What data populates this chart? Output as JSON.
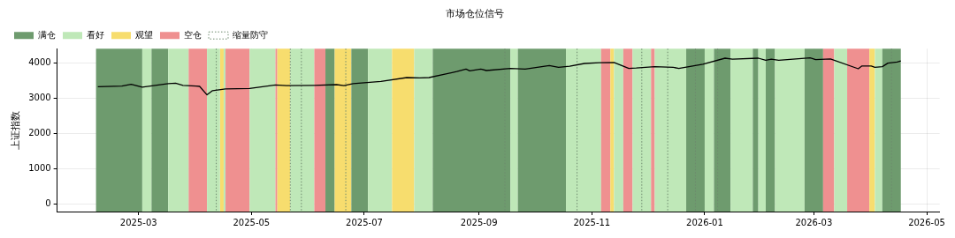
{
  "chart_data": {
    "type": "line",
    "title": "市场仓位信号",
    "ylabel": "上证指数",
    "x": [
      "2025-02-07",
      "2025-02-20",
      "2025-02-25",
      "2025-03-03",
      "2025-03-10",
      "2025-03-17",
      "2025-03-21",
      "2025-03-25",
      "2025-04-01",
      "2025-04-03",
      "2025-04-07",
      "2025-04-10",
      "2025-04-17",
      "2025-04-30",
      "2025-05-14",
      "2025-05-20",
      "2025-06-04",
      "2025-06-16",
      "2025-06-20",
      "2025-06-25",
      "2025-07-10",
      "2025-07-24",
      "2025-07-31",
      "2025-08-05",
      "2025-08-13",
      "2025-08-20",
      "2025-08-25",
      "2025-08-27",
      "2025-09-02",
      "2025-09-05",
      "2025-09-18",
      "2025-09-26",
      "2025-10-09",
      "2025-10-14",
      "2025-10-20",
      "2025-10-28",
      "2025-11-05",
      "2025-11-13",
      "2025-11-21",
      "2025-11-25",
      "2025-12-05",
      "2025-12-15",
      "2025-12-18",
      "2025-12-31",
      "2026-01-12",
      "2026-01-16",
      "2026-01-30",
      "2026-02-03",
      "2026-02-06",
      "2026-02-10",
      "2026-02-27",
      "2026-03-02",
      "2026-03-10",
      "2026-03-25",
      "2026-03-27",
      "2026-04-01",
      "2026-04-03",
      "2026-04-07",
      "2026-04-10",
      "2026-04-15",
      "2026-04-17"
    ],
    "series": [
      {
        "color": "#000000",
        "values": [
          3330,
          3350,
          3400,
          3320,
          3370,
          3420,
          3430,
          3370,
          3350,
          3340,
          3100,
          3220,
          3270,
          3280,
          3380,
          3360,
          3370,
          3390,
          3360,
          3420,
          3480,
          3590,
          3580,
          3590,
          3680,
          3760,
          3830,
          3780,
          3830,
          3790,
          3850,
          3830,
          3930,
          3880,
          3910,
          3990,
          4010,
          4020,
          3850,
          3860,
          3900,
          3880,
          3850,
          3970,
          4140,
          4110,
          4140,
          4080,
          4110,
          4080,
          4150,
          4100,
          4120,
          3840,
          3920,
          3920,
          3880,
          3900,
          4000,
          4030,
          4060
        ]
      }
    ],
    "xlim": [
      "2025-01-16",
      "2026-05-08"
    ],
    "xticks": [
      "2025-03",
      "2025-05",
      "2025-07",
      "2025-09",
      "2025-11",
      "2026-01",
      "2026-03",
      "2026-05"
    ],
    "ylim": [
      -210,
      4410
    ],
    "yticks": [
      0,
      1000,
      2000,
      3000,
      4000
    ],
    "grid": true,
    "legend": "top left",
    "bands": [
      {
        "axis": "x",
        "from": "2025-02-06",
        "to": "2025-03-03",
        "label": "满仓",
        "color": "#6e9b6e"
      },
      {
        "axis": "x",
        "from": "2025-03-03",
        "to": "2025-03-08",
        "label": "看好",
        "color": "#bfe8b8"
      },
      {
        "axis": "x",
        "from": "2025-04-14",
        "to": "2025-04-16",
        "label": "观望",
        "color": "#f7dd6e"
      },
      {
        "axis": "x",
        "from": "2025-03-28",
        "to": "2025-04-07",
        "label": "空仓",
        "color": "#ef9090"
      },
      {
        "axis": "x",
        "from": "2025-03-08",
        "to": "2025-03-17",
        "color": "#6e9b6e"
      },
      {
        "axis": "x",
        "from": "2025-03-17",
        "to": "2025-03-28",
        "color": "#bfe8b8"
      },
      {
        "axis": "x",
        "from": "2025-04-07",
        "to": "2025-04-14",
        "color": "#bfe8b8"
      },
      {
        "axis": "x",
        "from": "2025-04-16",
        "to": "2025-04-17",
        "color": "#bfe8b8"
      },
      {
        "axis": "x",
        "from": "2025-04-17",
        "to": "2025-04-30",
        "color": "#ef9090"
      },
      {
        "axis": "x",
        "from": "2025-04-30",
        "to": "2025-05-14",
        "color": "#bfe8b8"
      },
      {
        "axis": "x",
        "from": "2025-05-14",
        "to": "2025-05-15",
        "color": "#ef9090"
      },
      {
        "axis": "x",
        "from": "2025-05-15",
        "to": "2025-05-22",
        "color": "#f7dd6e"
      },
      {
        "axis": "x",
        "from": "2025-05-22",
        "to": "2025-06-04",
        "color": "#bfe8b8"
      },
      {
        "axis": "x",
        "from": "2025-06-04",
        "to": "2025-06-10",
        "color": "#ef9090"
      },
      {
        "axis": "x",
        "from": "2025-06-10",
        "to": "2025-06-15",
        "color": "#6e9b6e"
      },
      {
        "axis": "x",
        "from": "2025-06-15",
        "to": "2025-06-24",
        "color": "#f7dd6e"
      },
      {
        "axis": "x",
        "from": "2025-06-24",
        "to": "2025-07-03",
        "color": "#6e9b6e"
      },
      {
        "axis": "x",
        "from": "2025-07-03",
        "to": "2025-07-16",
        "color": "#bfe8b8"
      },
      {
        "axis": "x",
        "from": "2025-07-16",
        "to": "2025-07-28",
        "color": "#f7dd6e"
      },
      {
        "axis": "x",
        "from": "2025-07-28",
        "to": "2025-08-07",
        "color": "#bfe8b8"
      },
      {
        "axis": "x",
        "from": "2025-08-07",
        "to": "2025-09-18",
        "color": "#6e9b6e"
      },
      {
        "axis": "x",
        "from": "2025-09-18",
        "to": "2025-09-22",
        "color": "#bfe8b8"
      },
      {
        "axis": "x",
        "from": "2025-09-22",
        "to": "2025-10-18",
        "color": "#6e9b6e"
      },
      {
        "axis": "x",
        "from": "2025-10-18",
        "to": "2025-11-06",
        "color": "#bfe8b8"
      },
      {
        "axis": "x",
        "from": "2025-11-06",
        "to": "2025-11-11",
        "color": "#ef9090"
      },
      {
        "axis": "x",
        "from": "2025-11-11",
        "to": "2025-11-13",
        "color": "#f7dd6e"
      },
      {
        "axis": "x",
        "from": "2025-11-13",
        "to": "2025-11-18",
        "color": "#bfe8b8"
      },
      {
        "axis": "x",
        "from": "2025-11-18",
        "to": "2025-11-23",
        "color": "#ef9090"
      },
      {
        "axis": "x",
        "from": "2025-11-23",
        "to": "2025-12-03",
        "color": "#bfe8b8"
      },
      {
        "axis": "x",
        "from": "2025-12-03",
        "to": "2025-12-05",
        "color": "#ef9090"
      },
      {
        "axis": "x",
        "from": "2025-12-05",
        "to": "2025-12-22",
        "color": "#bfe8b8"
      },
      {
        "axis": "x",
        "from": "2025-12-22",
        "to": "2026-01-01",
        "color": "#6e9b6e"
      },
      {
        "axis": "x",
        "from": "2026-01-01",
        "to": "2026-01-06",
        "color": "#bfe8b8"
      },
      {
        "axis": "x",
        "from": "2026-01-06",
        "to": "2026-01-15",
        "color": "#6e9b6e"
      },
      {
        "axis": "x",
        "from": "2026-01-15",
        "to": "2026-01-27",
        "color": "#bfe8b8"
      },
      {
        "axis": "x",
        "from": "2026-01-27",
        "to": "2026-01-30",
        "color": "#6e9b6e"
      },
      {
        "axis": "x",
        "from": "2026-01-30",
        "to": "2026-02-03",
        "color": "#bfe8b8"
      },
      {
        "axis": "x",
        "from": "2026-02-03",
        "to": "2026-02-08",
        "color": "#6e9b6e"
      },
      {
        "axis": "x",
        "from": "2026-02-08",
        "to": "2026-02-24",
        "color": "#bfe8b8"
      },
      {
        "axis": "x",
        "from": "2026-02-24",
        "to": "2026-03-06",
        "color": "#6e9b6e"
      },
      {
        "axis": "x",
        "from": "2026-03-06",
        "to": "2026-03-12",
        "color": "#ef9090"
      },
      {
        "axis": "x",
        "from": "2026-03-12",
        "to": "2026-03-19",
        "color": "#bfe8b8"
      },
      {
        "axis": "x",
        "from": "2026-03-19",
        "to": "2026-03-31",
        "color": "#ef9090"
      },
      {
        "axis": "x",
        "from": "2026-03-31",
        "to": "2026-04-03",
        "color": "#f7dd6e"
      },
      {
        "axis": "x",
        "from": "2026-04-03",
        "to": "2026-04-07",
        "color": "#bfe8b8"
      },
      {
        "axis": "x",
        "from": "2026-04-07",
        "to": "2026-04-17",
        "color": "#6e9b6e"
      }
    ],
    "ref_lines": [
      {
        "axis": "x",
        "value": "2025-04-12",
        "label": "缩量防守",
        "color": "#6e8a6e",
        "line_style": "dotted"
      },
      {
        "axis": "x",
        "value": "2025-05-22",
        "color": "#6e8a6e",
        "line_style": "dotted"
      },
      {
        "axis": "x",
        "value": "2025-05-28",
        "color": "#6e8a6e",
        "line_style": "dotted"
      },
      {
        "axis": "x",
        "value": "2025-06-21",
        "color": "#6e8a6e",
        "line_style": "dotted"
      },
      {
        "axis": "x",
        "value": "2025-09-15",
        "color": "#6e8a6e",
        "line_style": "dotted"
      },
      {
        "axis": "x",
        "value": "2025-10-24",
        "color": "#6e8a6e",
        "line_style": "dotted"
      },
      {
        "axis": "x",
        "value": "2025-11-28",
        "color": "#6e8a6e",
        "line_style": "dotted"
      },
      {
        "axis": "x",
        "value": "2025-12-12",
        "color": "#6e8a6e",
        "line_style": "dotted"
      },
      {
        "axis": "x",
        "value": "2025-12-27",
        "color": "#6e8a6e",
        "line_style": "dotted"
      },
      {
        "axis": "x",
        "value": "2026-01-08",
        "color": "#6e8a6e",
        "line_style": "dotted"
      },
      {
        "axis": "x",
        "value": "2026-04-12",
        "color": "#6e8a6e",
        "line_style": "dotted"
      }
    ]
  }
}
